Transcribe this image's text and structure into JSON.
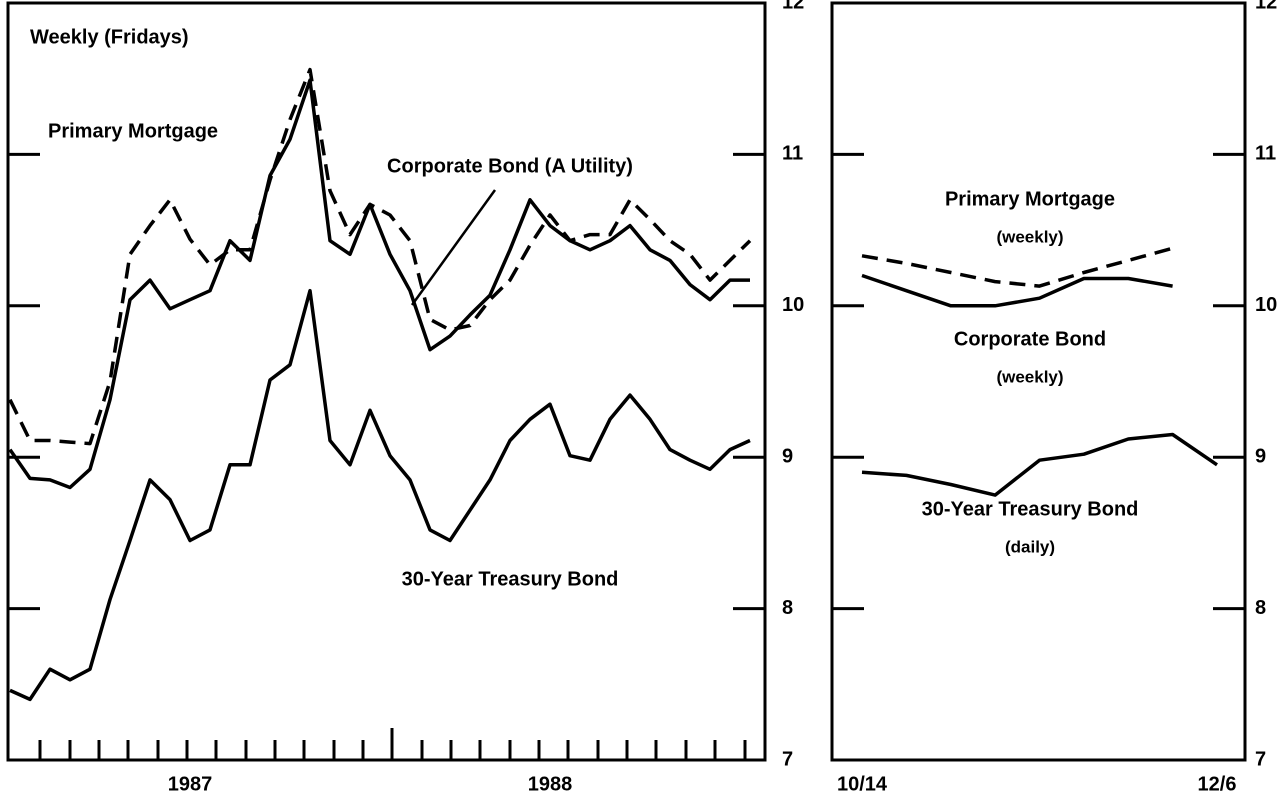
{
  "chart_data": [
    {
      "type": "line",
      "annotations": [
        "Weekly (Fridays)"
      ],
      "categories": [
        null,
        null,
        null,
        null,
        null,
        null,
        null,
        null,
        null,
        "1987",
        null,
        null,
        null,
        null,
        null,
        null,
        null,
        null,
        null,
        null,
        null,
        null,
        null,
        null,
        null,
        null,
        null,
        "1988",
        null,
        null,
        null,
        null,
        null,
        null,
        null,
        null,
        null,
        null
      ],
      "series": [
        {
          "name": "Primary Mortgage",
          "color": "#000",
          "dashed": true,
          "values": [
            9.38,
            9.11,
            9.11,
            9.1,
            9.09,
            9.5,
            10.34,
            10.53,
            10.7,
            10.44,
            10.27,
            10.37,
            10.37,
            10.83,
            11.23,
            11.56,
            10.76,
            10.47,
            10.67,
            10.6,
            10.43,
            9.91,
            9.84,
            9.87,
            10.04,
            10.17,
            10.4,
            10.6,
            10.43,
            10.47,
            10.47,
            10.7,
            10.57,
            10.43,
            10.34,
            10.17,
            10.3,
            10.43
          ]
        },
        {
          "name": "Corporate Bond (A Utility)",
          "color": "#000",
          "dashed": false,
          "values": [
            9.05,
            8.86,
            8.85,
            8.8,
            8.92,
            9.38,
            10.04,
            10.17,
            9.98,
            10.04,
            10.1,
            10.43,
            10.3,
            10.86,
            11.1,
            11.49,
            10.43,
            10.34,
            10.67,
            10.34,
            10.1,
            9.71,
            9.8,
            9.94,
            10.07,
            10.37,
            10.7,
            10.53,
            10.43,
            10.37,
            10.43,
            10.53,
            10.37,
            10.3,
            10.14,
            10.04,
            10.17,
            10.17
          ]
        },
        {
          "name": "30-Year Treasury Bond",
          "color": "#000",
          "dashed": false,
          "values": [
            7.46,
            7.4,
            7.6,
            7.53,
            7.6,
            8.06,
            8.45,
            8.85,
            8.72,
            8.45,
            8.52,
            8.95,
            8.95,
            9.51,
            9.61,
            10.1,
            9.11,
            8.95,
            9.31,
            9.01,
            8.85,
            8.52,
            8.45,
            8.65,
            8.85,
            9.11,
            9.25,
            9.35,
            9.01,
            8.98,
            9.25,
            9.41,
            9.25,
            9.05,
            8.98,
            8.92,
            9.05,
            9.11
          ]
        }
      ],
      "ylim": [
        7,
        12
      ],
      "yticks": [
        7,
        8,
        9,
        10,
        11,
        12
      ]
    },
    {
      "type": "line",
      "categories": [
        "10/14",
        null,
        null,
        null,
        null,
        null,
        null,
        null,
        "12/6"
      ],
      "series": [
        {
          "name": "Primary Mortgage",
          "subtitle": "(weekly)",
          "color": "#000",
          "dashed": true,
          "values": [
            10.33,
            10.28,
            10.22,
            10.16,
            10.13,
            10.22,
            10.3,
            10.38,
            null
          ]
        },
        {
          "name": "Corporate Bond",
          "subtitle": "(weekly)",
          "color": "#000",
          "dashed": false,
          "values": [
            10.2,
            10.1,
            10.0,
            10.0,
            10.05,
            10.18,
            10.18,
            10.13,
            null
          ]
        },
        {
          "name": "30-Year Treasury Bond",
          "subtitle": "(daily)",
          "color": "#000",
          "dashed": false,
          "values": [
            8.9,
            8.88,
            8.82,
            8.75,
            8.98,
            9.02,
            9.12,
            9.15,
            8.95
          ]
        }
      ],
      "ylim": [
        7,
        12
      ],
      "yticks": [
        7,
        8,
        9,
        10,
        11,
        12
      ]
    }
  ]
}
